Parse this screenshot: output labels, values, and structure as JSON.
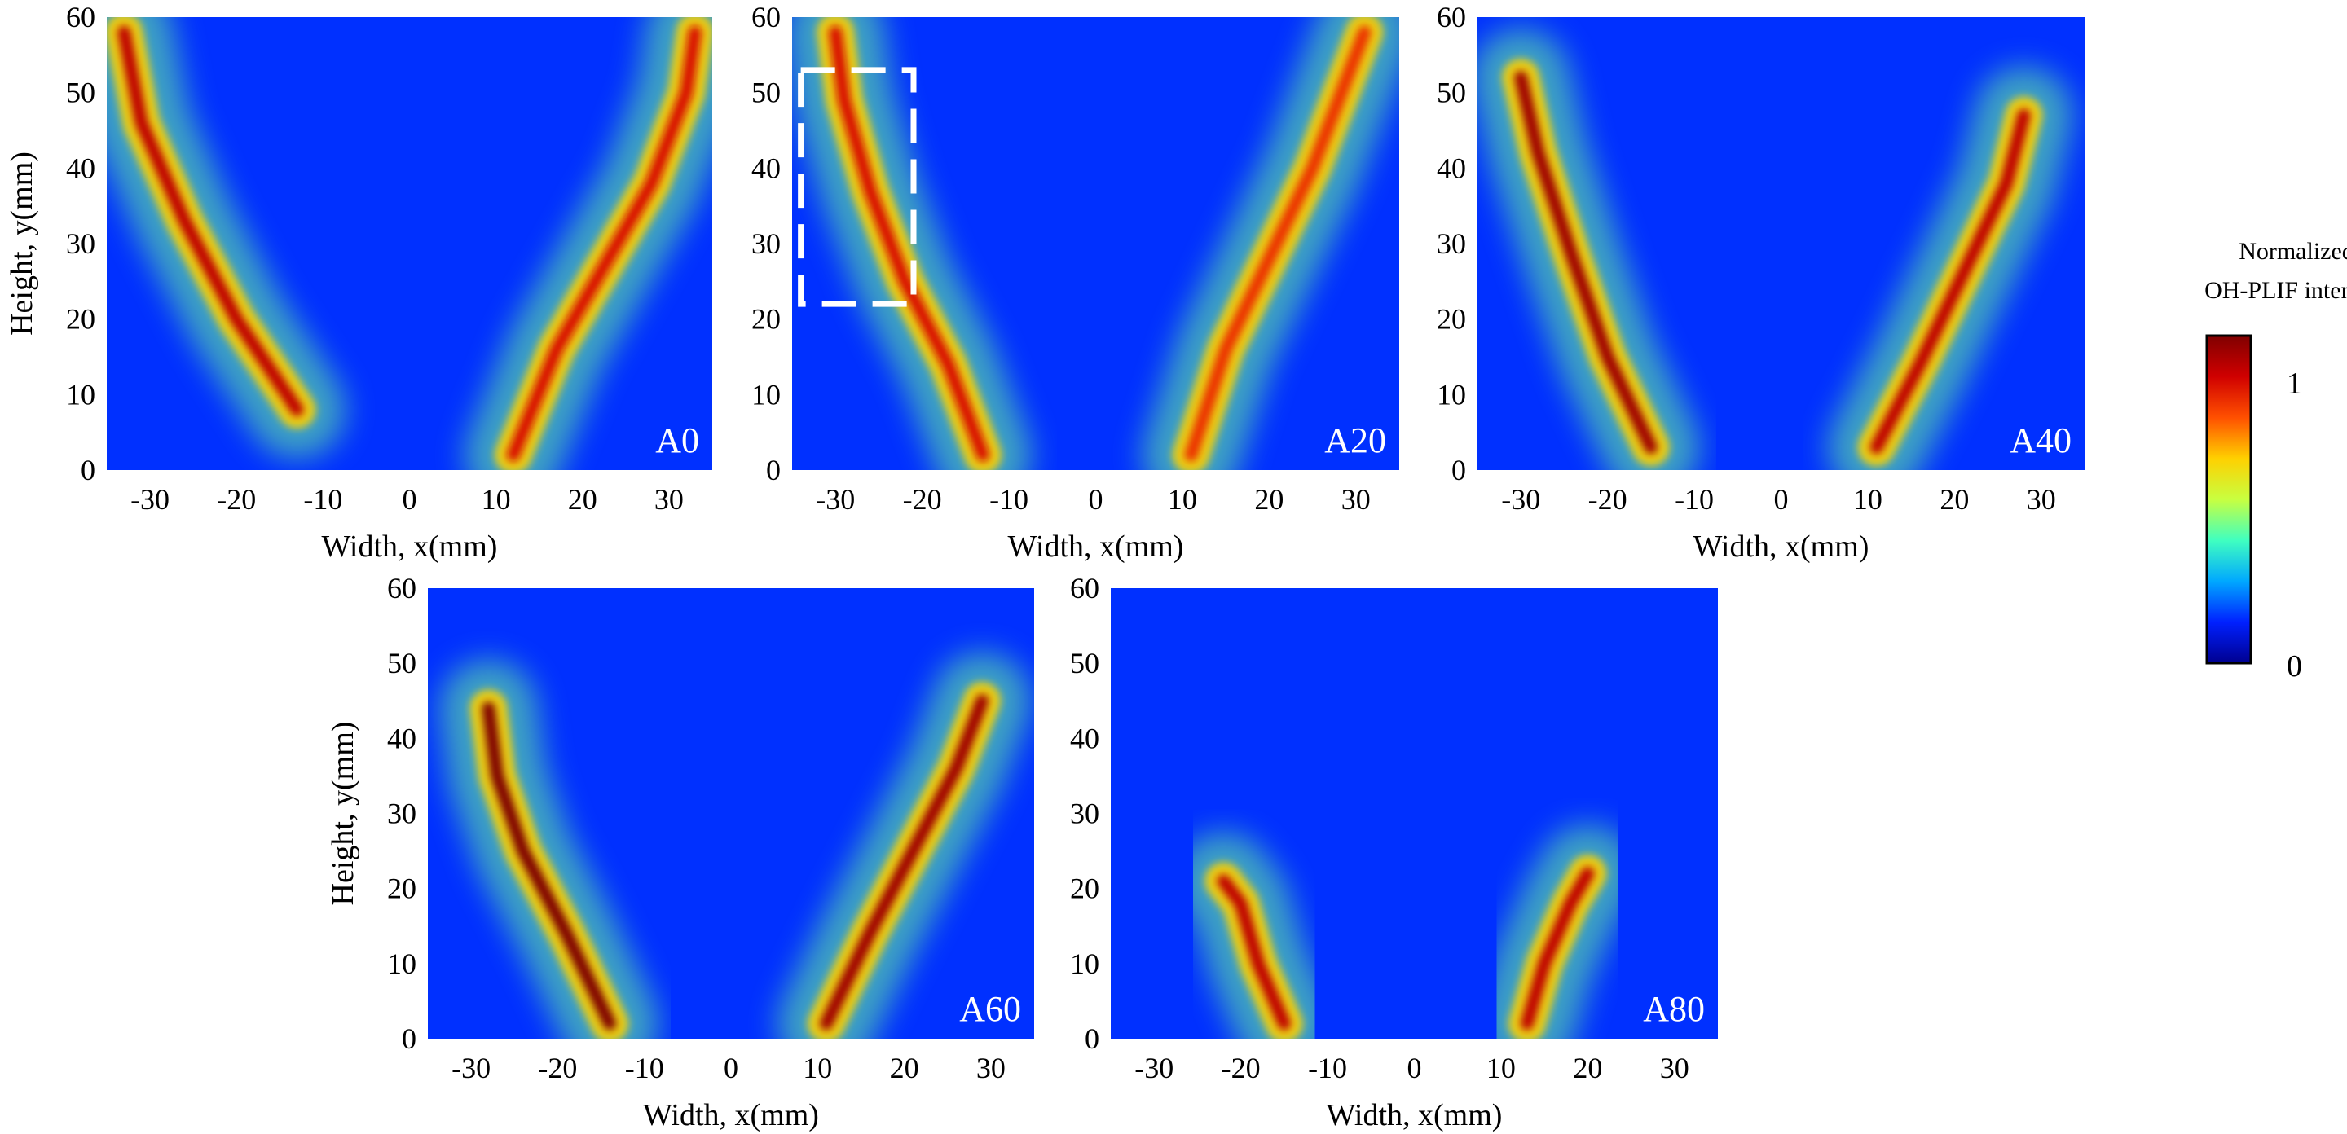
{
  "figure": {
    "colorbar": {
      "title_line1": "Normalized",
      "title_line2": "OH-PLIF intensity",
      "max_label": "1",
      "min_label": "0",
      "range": [
        0,
        1
      ],
      "colormap": "jet",
      "stops": [
        "#00008f",
        "#0020ff",
        "#00a8ff",
        "#40ffc0",
        "#c8ff40",
        "#ffd000",
        "#ff5000",
        "#d00000",
        "#800000"
      ]
    },
    "annotation": {
      "kind": "dashed-box",
      "panel": "A20",
      "color": "#ffffff",
      "x_range_mm": [
        -34,
        -21
      ],
      "y_range_mm": [
        22,
        53
      ]
    }
  },
  "chart_data": [
    {
      "type": "heatmap",
      "panel_label": "A0",
      "xlabel": "Width, x(mm)",
      "ylabel": "Height, y(mm)",
      "xlim": [
        -35,
        35
      ],
      "ylim": [
        0,
        60
      ],
      "xticks": [
        -30,
        -20,
        -10,
        0,
        10,
        20,
        30
      ],
      "yticks": [
        0,
        10,
        20,
        30,
        40,
        50,
        60
      ],
      "grid": false,
      "flame_branches": [
        {
          "points_mm": [
            [
              -13,
              8
            ],
            [
              -20,
              20
            ],
            [
              -26,
              33
            ],
            [
              -31,
              46
            ],
            [
              -33,
              58
            ]
          ],
          "peak_intensity": 0.9
        },
        {
          "points_mm": [
            [
              12,
              2
            ],
            [
              17,
              16
            ],
            [
              23,
              28
            ],
            [
              28,
              38
            ],
            [
              32,
              50
            ],
            [
              33,
              58
            ]
          ],
          "peak_intensity": 0.85
        }
      ]
    },
    {
      "type": "heatmap",
      "panel_label": "A20",
      "xlabel": "Width, x(mm)",
      "ylabel": "Height, y(mm)",
      "xlim": [
        -35,
        35
      ],
      "ylim": [
        0,
        60
      ],
      "xticks": [
        -30,
        -20,
        -10,
        0,
        10,
        20,
        30
      ],
      "yticks": [
        0,
        10,
        20,
        30,
        40,
        50,
        60
      ],
      "grid": false,
      "flame_branches": [
        {
          "points_mm": [
            [
              -13,
              2
            ],
            [
              -17,
              14
            ],
            [
              -22,
              25
            ],
            [
              -26,
              37
            ],
            [
              -29,
              49
            ],
            [
              -30,
              58
            ]
          ],
          "peak_intensity": 0.85
        },
        {
          "points_mm": [
            [
              11,
              2
            ],
            [
              15,
              16
            ],
            [
              20,
              28
            ],
            [
              25,
              40
            ],
            [
              29,
              52
            ],
            [
              31,
              58
            ]
          ],
          "peak_intensity": 0.8
        }
      ]
    },
    {
      "type": "heatmap",
      "panel_label": "A40",
      "xlabel": "Width, x(mm)",
      "ylabel": "Height, y(mm)",
      "xlim": [
        -35,
        35
      ],
      "ylim": [
        0,
        60
      ],
      "xticks": [
        -30,
        -20,
        -10,
        0,
        10,
        20,
        30
      ],
      "yticks": [
        0,
        10,
        20,
        30,
        40,
        50,
        60
      ],
      "grid": false,
      "flame_branches": [
        {
          "points_mm": [
            [
              -15,
              3
            ],
            [
              -20,
              15
            ],
            [
              -24,
              28
            ],
            [
              -28,
              42
            ],
            [
              -30,
              52
            ]
          ],
          "peak_intensity": 0.95
        },
        {
          "points_mm": [
            [
              11,
              3
            ],
            [
              16,
              14
            ],
            [
              21,
              26
            ],
            [
              26,
              38
            ],
            [
              28,
              47
            ]
          ],
          "peak_intensity": 0.9
        }
      ]
    },
    {
      "type": "heatmap",
      "panel_label": "A60",
      "xlabel": "Width, x(mm)",
      "ylabel": "Height, y(mm)",
      "xlim": [
        -35,
        35
      ],
      "ylim": [
        0,
        60
      ],
      "xticks": [
        -30,
        -20,
        -10,
        0,
        10,
        20,
        30
      ],
      "yticks": [
        0,
        10,
        20,
        30,
        40,
        50,
        60
      ],
      "grid": false,
      "flame_branches": [
        {
          "points_mm": [
            [
              -14,
              2
            ],
            [
              -19,
              14
            ],
            [
              -24,
              25
            ],
            [
              -27,
              35
            ],
            [
              -28,
              44
            ]
          ],
          "peak_intensity": 1.0
        },
        {
          "points_mm": [
            [
              11,
              2
            ],
            [
              16,
              14
            ],
            [
              21,
              25
            ],
            [
              26,
              36
            ],
            [
              29,
              45
            ]
          ],
          "peak_intensity": 0.95
        }
      ]
    },
    {
      "type": "heatmap",
      "panel_label": "A80",
      "xlabel": "Width, x(mm)",
      "ylabel": "Height, y(mm)",
      "xlim": [
        -35,
        35
      ],
      "ylim": [
        0,
        60
      ],
      "xticks": [
        -30,
        -20,
        -10,
        0,
        10,
        20,
        30
      ],
      "yticks": [
        0,
        10,
        20,
        30,
        40,
        50,
        60
      ],
      "grid": false,
      "flame_branches": [
        {
          "points_mm": [
            [
              -15,
              2
            ],
            [
              -18,
              10
            ],
            [
              -20,
              18
            ],
            [
              -22,
              21
            ]
          ],
          "peak_intensity": 0.9
        },
        {
          "points_mm": [
            [
              13,
              2
            ],
            [
              15,
              10
            ],
            [
              18,
              18
            ],
            [
              20,
              22
            ]
          ],
          "peak_intensity": 0.9
        }
      ]
    }
  ]
}
